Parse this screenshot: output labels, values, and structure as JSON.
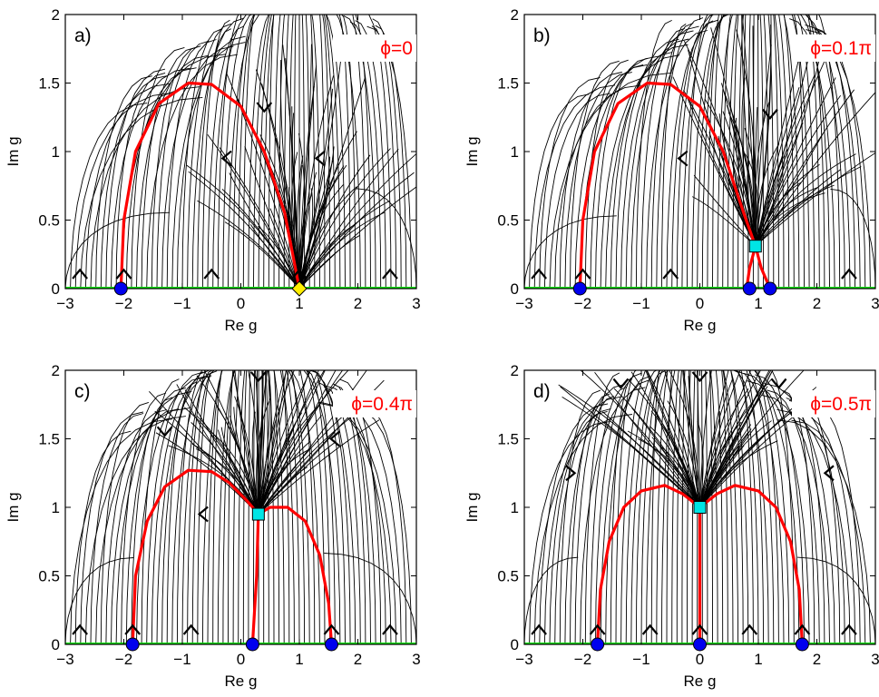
{
  "chart_data": [
    {
      "type": "line",
      "panel_label": "a)",
      "annotation": "ϕ=0",
      "xlabel": "Re g",
      "ylabel": "Im g",
      "xlim": [
        -3,
        3
      ],
      "ylim": [
        0,
        2
      ],
      "x_ticks": [
        "−3",
        "−2",
        "−1",
        "0",
        "1",
        "2",
        "3"
      ],
      "y_ticks": [
        "0",
        "0.5",
        "1",
        "1.5",
        "2"
      ],
      "series": [
        {
          "x": [
            -2.05,
            -2.0,
            -1.8,
            -1.4,
            -0.9,
            -0.5,
            0.0,
            0.4,
            0.75,
            1.0
          ],
          "y": [
            0.0,
            0.5,
            1.0,
            1.35,
            1.5,
            1.49,
            1.33,
            1.0,
            0.55,
            0.0
          ]
        }
      ],
      "circles": [
        [
          -2.05,
          0
        ]
      ],
      "squares": [],
      "diamonds": [
        [
          1.0,
          0
        ]
      ],
      "chevrons": [
        [
          -2.75,
          0.11,
          "up"
        ],
        [
          -2.0,
          0.11,
          "up"
        ],
        [
          -0.5,
          0.11,
          "up"
        ],
        [
          1.0,
          0.11,
          "up"
        ],
        [
          2.55,
          0.11,
          "up"
        ],
        [
          -0.25,
          0.95,
          "left"
        ],
        [
          0.4,
          1.32,
          "down"
        ],
        [
          1.35,
          0.95,
          "left"
        ]
      ]
    },
    {
      "type": "line",
      "panel_label": "b)",
      "annotation": "ϕ=0.1π",
      "xlabel": "Re g",
      "ylabel": "Im g",
      "xlim": [
        -3,
        3
      ],
      "ylim": [
        0,
        2
      ],
      "x_ticks": [
        "−3",
        "−2",
        "−1",
        "0",
        "1",
        "2",
        "3"
      ],
      "y_ticks": [
        "0",
        "0.5",
        "1",
        "1.5",
        "2"
      ],
      "series": [
        {
          "x": [
            -2.05,
            -2.0,
            -1.8,
            -1.4,
            -0.9,
            -0.5,
            0.0,
            0.4,
            0.75,
            0.95
          ],
          "y": [
            0.0,
            0.5,
            1.0,
            1.35,
            1.5,
            1.49,
            1.33,
            1.0,
            0.55,
            0.31
          ]
        },
        {
          "x": [
            0.95,
            0.85,
            0.8
          ],
          "y": [
            0.31,
            0.15,
            0.0
          ]
        },
        {
          "x": [
            0.95,
            1.05,
            1.2
          ],
          "y": [
            0.31,
            0.15,
            0.0
          ]
        }
      ],
      "circles": [
        [
          -2.05,
          0
        ],
        [
          0.85,
          0
        ],
        [
          1.2,
          0
        ]
      ],
      "squares": [
        [
          0.95,
          0.31
        ]
      ],
      "diamonds": [],
      "chevrons": [
        [
          -2.75,
          0.11,
          "up"
        ],
        [
          -2.0,
          0.11,
          "up"
        ],
        [
          -0.5,
          0.11,
          "up"
        ],
        [
          2.55,
          0.11,
          "up"
        ],
        [
          -0.3,
          0.95,
          "left"
        ],
        [
          1.2,
          1.27,
          "down"
        ]
      ]
    },
    {
      "type": "line",
      "panel_label": "c)",
      "annotation": "ϕ=0.4π",
      "xlabel": "Re g",
      "ylabel": "Im g",
      "xlim": [
        -3,
        3
      ],
      "ylim": [
        0,
        2
      ],
      "x_ticks": [
        "−3",
        "−2",
        "−1",
        "0",
        "1",
        "2",
        "3"
      ],
      "y_ticks": [
        "0",
        "0.5",
        "1",
        "1.5",
        "2"
      ],
      "series": [
        {
          "x": [
            -1.85,
            -1.8,
            -1.6,
            -1.3,
            -0.9,
            -0.5,
            -0.2,
            0.1,
            0.3
          ],
          "y": [
            0.0,
            0.5,
            0.9,
            1.15,
            1.27,
            1.26,
            1.18,
            1.05,
            0.95
          ]
        },
        {
          "x": [
            0.3,
            0.27,
            0.2
          ],
          "y": [
            0.95,
            0.5,
            0.0
          ]
        },
        {
          "x": [
            0.3,
            0.5,
            0.8,
            1.1,
            1.35,
            1.5,
            1.55
          ],
          "y": [
            0.95,
            1.0,
            1.0,
            0.9,
            0.65,
            0.3,
            0.0
          ]
        }
      ],
      "circles": [
        [
          -1.85,
          0
        ],
        [
          0.2,
          0
        ],
        [
          1.55,
          0
        ]
      ],
      "squares": [
        [
          0.3,
          0.95
        ]
      ],
      "diamonds": [],
      "chevrons": [
        [
          -2.75,
          0.11,
          "up"
        ],
        [
          -1.85,
          0.11,
          "up"
        ],
        [
          -0.85,
          0.11,
          "up"
        ],
        [
          1.55,
          0.11,
          "up"
        ],
        [
          2.55,
          0.11,
          "up"
        ],
        [
          -1.3,
          1.55,
          "down"
        ],
        [
          0.3,
          1.95,
          "down"
        ],
        [
          1.6,
          1.5,
          "left"
        ],
        [
          -0.65,
          0.95,
          "left"
        ]
      ]
    },
    {
      "type": "line",
      "panel_label": "d)",
      "annotation": "ϕ=0.5π",
      "xlabel": "Re g",
      "ylabel": "Im g",
      "xlim": [
        -3,
        3
      ],
      "ylim": [
        0,
        2
      ],
      "x_ticks": [
        "−3",
        "−2",
        "−1",
        "0",
        "1",
        "2",
        "3"
      ],
      "y_ticks": [
        "0",
        "0.5",
        "1",
        "1.5",
        "2"
      ],
      "series": [
        {
          "x": [
            -1.75,
            -1.7,
            -1.55,
            -1.3,
            -1.0,
            -0.6,
            -0.3,
            0.0
          ],
          "y": [
            0.0,
            0.4,
            0.75,
            1.0,
            1.12,
            1.16,
            1.1,
            1.0
          ]
        },
        {
          "x": [
            0.0,
            0.0
          ],
          "y": [
            1.0,
            0.0
          ]
        },
        {
          "x": [
            0.0,
            0.3,
            0.6,
            1.0,
            1.3,
            1.55,
            1.7,
            1.75
          ],
          "y": [
            1.0,
            1.1,
            1.16,
            1.12,
            1.0,
            0.75,
            0.4,
            0.0
          ]
        }
      ],
      "circles": [
        [
          -1.75,
          0
        ],
        [
          0.0,
          0
        ],
        [
          1.75,
          0
        ]
      ],
      "squares": [
        [
          0.0,
          1.0
        ]
      ],
      "diamonds": [],
      "chevrons": [
        [
          -2.75,
          0.11,
          "up"
        ],
        [
          -1.75,
          0.11,
          "up"
        ],
        [
          -0.85,
          0.11,
          "up"
        ],
        [
          0.0,
          0.11,
          "up"
        ],
        [
          0.85,
          0.11,
          "up"
        ],
        [
          1.75,
          0.11,
          "up"
        ],
        [
          2.55,
          0.11,
          "up"
        ],
        [
          -1.35,
          1.9,
          "down"
        ],
        [
          0.0,
          1.95,
          "down"
        ],
        [
          1.35,
          1.9,
          "down"
        ],
        [
          -2.2,
          1.25,
          "right"
        ],
        [
          2.2,
          1.25,
          "left"
        ]
      ]
    }
  ]
}
